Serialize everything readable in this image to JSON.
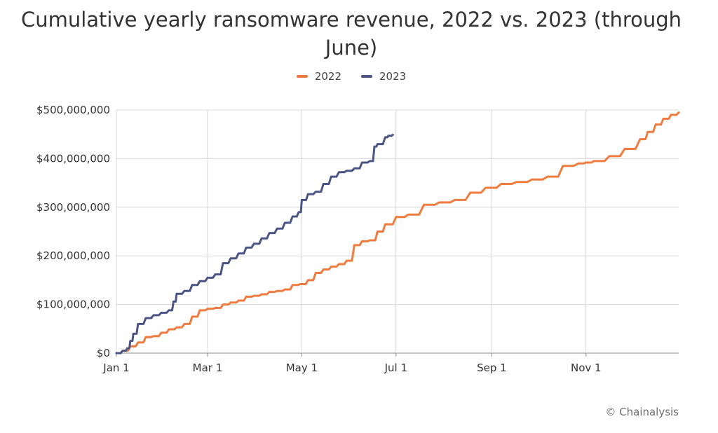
{
  "chart_data": {
    "type": "line",
    "title": "Cumulative yearly ransomware revenue, 2022 vs. 2023 (through June)",
    "x_tick_labels": [
      "Jan 1",
      "Mar 1",
      "May 1",
      "Jul 1",
      "Sep 1",
      "Nov 1"
    ],
    "x_tick_days": [
      1,
      60,
      121,
      182,
      244,
      305
    ],
    "xlim_days": [
      1,
      365
    ],
    "y_tick_labels": [
      "$0",
      "$100,000,000",
      "$200,000,000",
      "$300,000,000",
      "$400,000,000",
      "$500,000,000"
    ],
    "y_tick_values": [
      0,
      100000000,
      200000000,
      300000000,
      400000000,
      500000000
    ],
    "ylim": [
      0,
      500000000
    ],
    "grid": true,
    "legend_position": "top-center",
    "series": [
      {
        "name": "2022",
        "color": "#f07b3f",
        "x_days": [
          1,
          5,
          10,
          15,
          20,
          25,
          30,
          35,
          40,
          45,
          50,
          55,
          60,
          65,
          70,
          75,
          80,
          85,
          90,
          95,
          100,
          105,
          110,
          115,
          120,
          125,
          130,
          135,
          140,
          145,
          150,
          155,
          160,
          165,
          170,
          175,
          182,
          190,
          200,
          210,
          220,
          230,
          240,
          250,
          260,
          270,
          280,
          290,
          300,
          305,
          310,
          320,
          330,
          340,
          345,
          350,
          355,
          360,
          365
        ],
        "values": [
          0,
          5000000,
          14000000,
          22000000,
          33000000,
          35000000,
          42000000,
          49000000,
          53000000,
          60000000,
          75000000,
          88000000,
          91000000,
          93000000,
          100000000,
          104000000,
          108000000,
          116000000,
          118000000,
          121000000,
          126000000,
          128000000,
          131000000,
          140000000,
          142000000,
          150000000,
          165000000,
          172000000,
          178000000,
          183000000,
          190000000,
          222000000,
          230000000,
          232000000,
          250000000,
          265000000,
          280000000,
          285000000,
          305000000,
          310000000,
          315000000,
          330000000,
          340000000,
          348000000,
          352000000,
          357000000,
          363000000,
          385000000,
          390000000,
          392000000,
          395000000,
          405000000,
          420000000,
          440000000,
          455000000,
          470000000,
          482000000,
          490000000,
          495000000
        ]
      },
      {
        "name": "2023",
        "color": "#4b5585",
        "x_days": [
          1,
          5,
          8,
          10,
          12,
          15,
          20,
          25,
          30,
          35,
          38,
          40,
          45,
          50,
          55,
          60,
          65,
          70,
          75,
          80,
          85,
          90,
          95,
          100,
          105,
          110,
          115,
          119,
          121,
          125,
          130,
          135,
          140,
          145,
          150,
          155,
          160,
          165,
          168,
          170,
          175,
          177,
          180
        ],
        "values": [
          0,
          5000000,
          10000000,
          25000000,
          40000000,
          60000000,
          72000000,
          78000000,
          83000000,
          88000000,
          106000000,
          122000000,
          128000000,
          140000000,
          148000000,
          155000000,
          162000000,
          185000000,
          195000000,
          205000000,
          217000000,
          225000000,
          236000000,
          247000000,
          256000000,
          268000000,
          281000000,
          290000000,
          315000000,
          327000000,
          332000000,
          348000000,
          363000000,
          372000000,
          375000000,
          380000000,
          392000000,
          395000000,
          425000000,
          430000000,
          444000000,
          447000000,
          449000000
        ]
      }
    ]
  },
  "credit": "© Chainalysis"
}
